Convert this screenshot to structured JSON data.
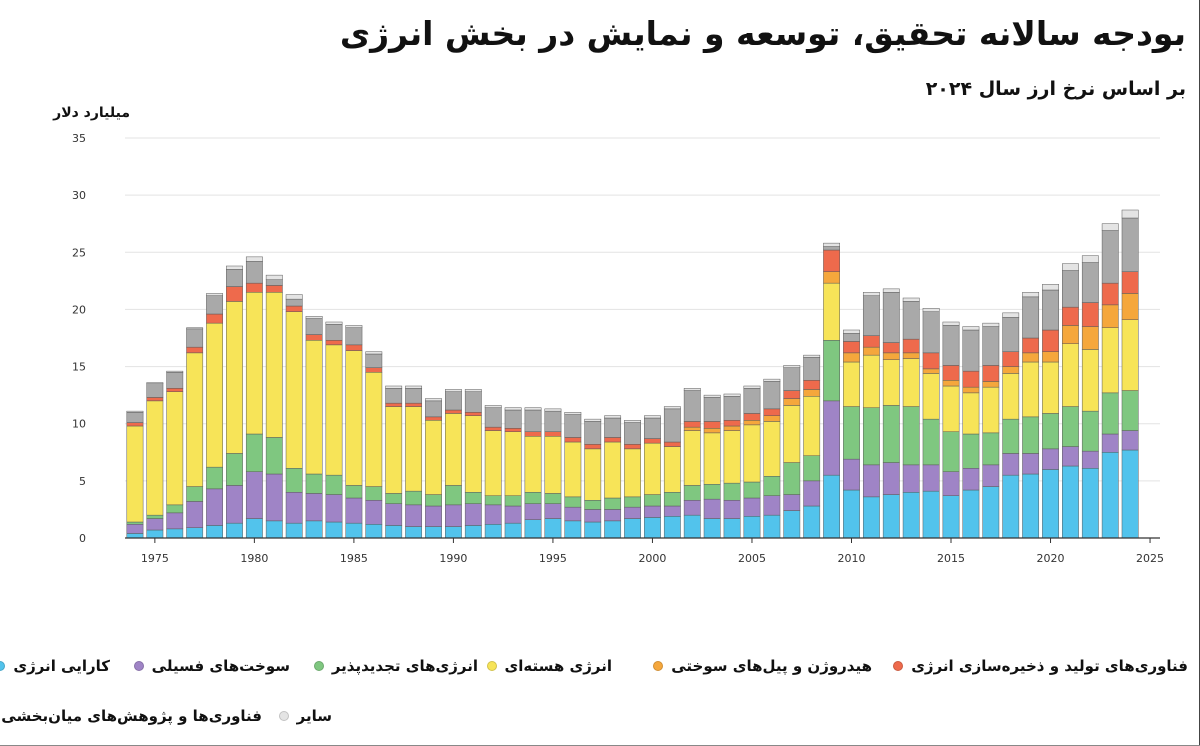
{
  "title": "بودجه سالانه تحقیق، توسعه و نمایش در بخش انرژی",
  "subtitle": "بر اساس نرخ ارز سال ۲۰۲۴",
  "chart_data": {
    "type": "bar",
    "stacked": true,
    "ylabel": "میلیارد دلار",
    "ylim": [
      0,
      35
    ],
    "yticks": [
      0,
      5,
      10,
      15,
      20,
      25,
      30,
      35
    ],
    "xticks": [
      1975,
      1980,
      1985,
      1990,
      1995,
      2000,
      2005,
      2010,
      2015,
      2020,
      2025
    ],
    "grid": true,
    "legend_position": "bottom",
    "x": [
      1974,
      1975,
      1976,
      1977,
      1978,
      1979,
      1980,
      1981,
      1982,
      1983,
      1984,
      1985,
      1986,
      1987,
      1988,
      1989,
      1990,
      1991,
      1992,
      1993,
      1994,
      1995,
      1996,
      1997,
      1998,
      1999,
      2000,
      2001,
      2002,
      2003,
      2004,
      2005,
      2006,
      2007,
      2008,
      2009,
      2010,
      2011,
      2012,
      2013,
      2014,
      2015,
      2016,
      2017,
      2018,
      2019,
      2020,
      2021,
      2022,
      2023,
      2024
    ],
    "series": [
      {
        "name": "کارایی انرژی",
        "color": "#52c3ec",
        "values": [
          0.4,
          0.7,
          0.8,
          0.9,
          1.1,
          1.3,
          1.7,
          1.5,
          1.3,
          1.5,
          1.4,
          1.3,
          1.2,
          1.1,
          1.0,
          1.0,
          1.0,
          1.1,
          1.2,
          1.3,
          1.6,
          1.7,
          1.5,
          1.4,
          1.5,
          1.7,
          1.8,
          1.9,
          2.0,
          1.7,
          1.7,
          1.9,
          2.0,
          2.4,
          2.8,
          5.5,
          4.2,
          3.6,
          3.8,
          4.0,
          4.1,
          3.7,
          4.2,
          4.5,
          5.5,
          5.6,
          6.0,
          6.3,
          6.1,
          7.5,
          7.7
        ]
      },
      {
        "name": "سوخت‌های فسیلی",
        "color": "#9f84c6",
        "values": [
          0.8,
          1.0,
          1.4,
          2.3,
          3.2,
          3.3,
          4.1,
          4.1,
          2.7,
          2.4,
          2.4,
          2.2,
          2.1,
          1.9,
          1.9,
          1.8,
          1.9,
          1.9,
          1.7,
          1.5,
          1.4,
          1.3,
          1.2,
          1.1,
          1.0,
          1.0,
          1.0,
          0.9,
          1.3,
          1.7,
          1.6,
          1.6,
          1.7,
          1.4,
          2.2,
          6.5,
          2.7,
          2.8,
          2.8,
          2.4,
          2.3,
          2.1,
          1.9,
          1.9,
          1.9,
          1.8,
          1.8,
          1.7,
          1.5,
          1.6,
          1.7
        ]
      },
      {
        "name": "انرژی‌های تجدیدپذیر",
        "color": "#7fc780",
        "values": [
          0.2,
          0.3,
          0.7,
          1.3,
          1.9,
          2.8,
          3.3,
          3.2,
          2.1,
          1.7,
          1.7,
          1.1,
          1.2,
          0.9,
          1.2,
          1.0,
          1.7,
          1.0,
          0.8,
          0.9,
          1.0,
          0.9,
          0.9,
          0.8,
          1.0,
          0.9,
          1.0,
          1.2,
          1.3,
          1.3,
          1.5,
          1.4,
          1.7,
          2.8,
          2.2,
          5.3,
          4.6,
          5.0,
          5.0,
          5.1,
          4.0,
          3.5,
          3.0,
          2.8,
          3.0,
          3.2,
          3.1,
          3.5,
          3.5,
          3.6,
          3.5
        ]
      },
      {
        "name": "انرژی هسته‌ای",
        "color": "#f7e458",
        "values": [
          8.4,
          10.0,
          9.9,
          11.7,
          12.6,
          13.3,
          12.4,
          12.7,
          13.7,
          11.7,
          11.4,
          11.8,
          10.0,
          7.6,
          7.4,
          6.5,
          6.3,
          6.7,
          5.7,
          5.6,
          4.9,
          5.0,
          4.8,
          4.5,
          4.9,
          4.2,
          4.5,
          4.0,
          4.8,
          4.5,
          4.6,
          5.0,
          4.8,
          5.0,
          5.2,
          5.0,
          3.9,
          4.6,
          4.0,
          4.2,
          4.0,
          4.0,
          3.6,
          4.0,
          4.0,
          4.8,
          4.5,
          5.5,
          5.4,
          5.7,
          6.2
        ]
      },
      {
        "name": "هیدروژن و پیل‌های سوختی",
        "color": "#f5a73c",
        "values": [
          0,
          0,
          0,
          0,
          0,
          0,
          0,
          0,
          0,
          0,
          0,
          0,
          0,
          0,
          0,
          0,
          0,
          0,
          0,
          0,
          0,
          0,
          0,
          0,
          0,
          0,
          0,
          0,
          0.3,
          0.4,
          0.4,
          0.4,
          0.5,
          0.6,
          0.6,
          1.0,
          0.8,
          0.7,
          0.6,
          0.5,
          0.4,
          0.5,
          0.5,
          0.5,
          0.6,
          0.8,
          0.9,
          1.6,
          2.0,
          2.0,
          2.3
        ]
      },
      {
        "name": "فناوری‌های تولید و ذخیره‌سازی انرژی",
        "color": "#ee6a4c",
        "values": [
          0.3,
          0.3,
          0.3,
          0.5,
          0.8,
          1.3,
          0.8,
          0.6,
          0.5,
          0.5,
          0.4,
          0.5,
          0.4,
          0.3,
          0.3,
          0.3,
          0.3,
          0.3,
          0.3,
          0.3,
          0.4,
          0.4,
          0.4,
          0.4,
          0.4,
          0.4,
          0.4,
          0.4,
          0.5,
          0.6,
          0.5,
          0.6,
          0.6,
          0.7,
          0.8,
          1.9,
          1.0,
          1.0,
          0.9,
          1.2,
          1.4,
          1.3,
          1.4,
          1.4,
          1.3,
          1.3,
          1.9,
          1.6,
          2.1,
          1.9,
          1.9
        ]
      },
      {
        "name": "فناوری‌ها و پژوهش‌های میان‌بخشی",
        "color": "#a9a9a9",
        "values": [
          0.9,
          1.2,
          1.4,
          1.6,
          1.6,
          1.5,
          1.9,
          0.5,
          0.6,
          1.4,
          1.4,
          1.5,
          1.2,
          1.3,
          1.3,
          1.4,
          1.6,
          1.8,
          1.7,
          1.6,
          1.9,
          1.8,
          2.0,
          2.0,
          1.7,
          1.9,
          1.8,
          2.9,
          2.7,
          2.1,
          2.1,
          2.2,
          2.4,
          2.0,
          2.0,
          0.3,
          0.7,
          3.5,
          4.4,
          3.3,
          3.6,
          3.5,
          3.6,
          3.4,
          3.0,
          3.6,
          3.5,
          3.2,
          3.5,
          4.6,
          4.7
        ]
      },
      {
        "name": "سایر",
        "color": "#e4e4e4",
        "values": [
          0.1,
          0.1,
          0.1,
          0.1,
          0.2,
          0.3,
          0.4,
          0.4,
          0.4,
          0.2,
          0.2,
          0.2,
          0.2,
          0.2,
          0.2,
          0.2,
          0.2,
          0.2,
          0.2,
          0.2,
          0.2,
          0.2,
          0.2,
          0.2,
          0.2,
          0.2,
          0.2,
          0.2,
          0.2,
          0.2,
          0.2,
          0.2,
          0.2,
          0.2,
          0.2,
          0.3,
          0.3,
          0.3,
          0.3,
          0.3,
          0.3,
          0.3,
          0.3,
          0.3,
          0.4,
          0.4,
          0.5,
          0.6,
          0.6,
          0.6,
          0.7
        ]
      }
    ]
  },
  "legend": {
    "row1": [
      {
        "label": "کارایی انرژی",
        "color": "#52c3ec"
      },
      {
        "label": "سوخت‌های فسیلی",
        "color": "#9f84c6"
      },
      {
        "label": "انرژی‌های تجدیدپذیر",
        "color": "#7fc780"
      },
      {
        "label": "انرژی هسته‌ای",
        "color": "#f7e458"
      },
      {
        "label": "هیدروژن و پیل‌های سوختی",
        "color": "#f5a73c"
      },
      {
        "label": "فناوری‌های تولید و ذخیره‌سازی انرژی",
        "color": "#ee6a4c"
      }
    ],
    "row2": [
      {
        "label": "فناوری‌ها و پژوهش‌های میان‌بخشی",
        "color": "#a9a9a9"
      },
      {
        "label": "سایر",
        "color": "#e4e4e4"
      }
    ]
  }
}
